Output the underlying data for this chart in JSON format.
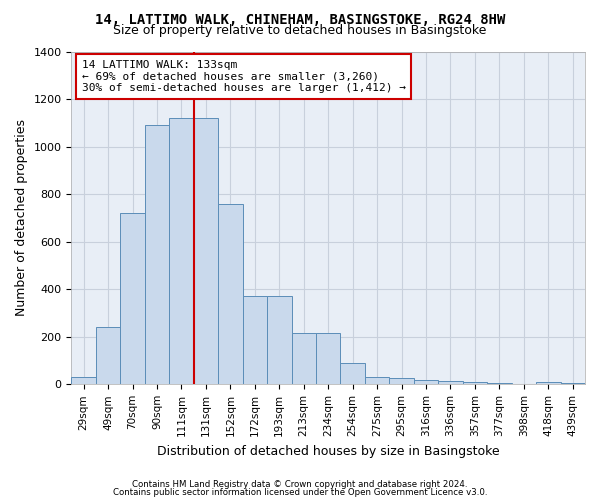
{
  "title": "14, LATTIMO WALK, CHINEHAM, BASINGSTOKE, RG24 8HW",
  "subtitle": "Size of property relative to detached houses in Basingstoke",
  "xlabel": "Distribution of detached houses by size in Basingstoke",
  "ylabel": "Number of detached properties",
  "footer1": "Contains HM Land Registry data © Crown copyright and database right 2024.",
  "footer2": "Contains public sector information licensed under the Open Government Licence v3.0.",
  "annotation_line1": "14 LATTIMO WALK: 133sqm",
  "annotation_line2": "← 69% of detached houses are smaller (3,260)",
  "annotation_line3": "30% of semi-detached houses are larger (1,412) →",
  "bar_color": "#c9d9ec",
  "bar_edge_color": "#5b8db8",
  "vline_color": "#cc0000",
  "vline_x": 5.0,
  "categories": [
    "29sqm",
    "49sqm",
    "70sqm",
    "90sqm",
    "111sqm",
    "131sqm",
    "152sqm",
    "172sqm",
    "193sqm",
    "213sqm",
    "234sqm",
    "254sqm",
    "275sqm",
    "295sqm",
    "316sqm",
    "336sqm",
    "357sqm",
    "377sqm",
    "398sqm",
    "418sqm",
    "439sqm"
  ],
  "values": [
    30,
    240,
    720,
    1090,
    1120,
    1120,
    760,
    370,
    370,
    215,
    215,
    90,
    30,
    25,
    20,
    15,
    10,
    5,
    0,
    10,
    5
  ],
  "ylim": [
    0,
    1400
  ],
  "yticks": [
    0,
    200,
    400,
    600,
    800,
    1000,
    1200,
    1400
  ],
  "plot_bg_color": "#e8eef6",
  "grid_color": "#c8d0dc",
  "fig_bg_color": "#ffffff",
  "title_fontsize": 10,
  "subtitle_fontsize": 9,
  "axis_label_fontsize": 9,
  "tick_fontsize": 7.5,
  "annotation_fontsize": 8
}
